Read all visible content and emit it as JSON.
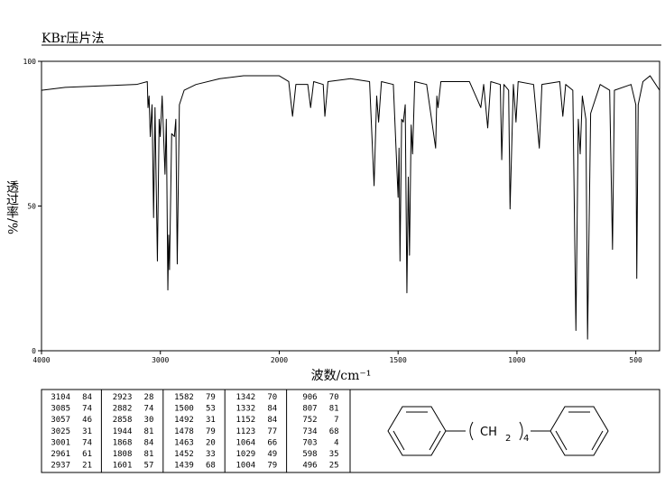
{
  "chart_data": {
    "type": "line",
    "title": "KBr压片法",
    "x_label": "波数/cm⁻¹",
    "y_label": "透过率/%",
    "xlim": [
      4000,
      400
    ],
    "xbreak": 2000,
    "ylim": [
      0,
      100
    ],
    "xticks": [
      4000,
      3000,
      2000,
      1500,
      1000,
      500
    ],
    "yticks": [
      0,
      50,
      100
    ],
    "grid": false,
    "x": [
      4000,
      3800,
      3500,
      3200,
      3110,
      3104,
      3095,
      3085,
      3070,
      3057,
      3045,
      3025,
      3010,
      3001,
      2985,
      2961,
      2950,
      2937,
      2930,
      2923,
      2905,
      2882,
      2870,
      2858,
      2840,
      2800,
      2700,
      2500,
      2300,
      2100,
      2000,
      1960,
      1944,
      1930,
      1880,
      1868,
      1855,
      1815,
      1808,
      1795,
      1700,
      1620,
      1601,
      1590,
      1582,
      1570,
      1520,
      1500,
      1496,
      1492,
      1485,
      1478,
      1470,
      1463,
      1457,
      1452,
      1445,
      1439,
      1430,
      1380,
      1342,
      1337,
      1332,
      1320,
      1200,
      1152,
      1140,
      1123,
      1110,
      1070,
      1064,
      1055,
      1035,
      1029,
      1015,
      1004,
      995,
      930,
      906,
      895,
      820,
      807,
      795,
      765,
      752,
      742,
      734,
      725,
      710,
      703,
      690,
      650,
      610,
      598,
      590,
      520,
      500,
      496,
      490,
      470,
      440,
      400
    ],
    "series": [
      {
        "name": "spectrum",
        "color": "#000000",
        "values": [
          90,
          91,
          91.5,
          92,
          93,
          84,
          88,
          74,
          85,
          46,
          84,
          31,
          80,
          74,
          88,
          61,
          80,
          21,
          40,
          28,
          75,
          74,
          80,
          30,
          85,
          90,
          92,
          94,
          95,
          95,
          95,
          93,
          81,
          92,
          92,
          84,
          93,
          92,
          81,
          93,
          94,
          93,
          57,
          88,
          79,
          93,
          92,
          53,
          70,
          31,
          80,
          79,
          85,
          20,
          60,
          33,
          78,
          68,
          93,
          92,
          70,
          88,
          84,
          93,
          93,
          84,
          92,
          77,
          93,
          92,
          66,
          92,
          90,
          49,
          92,
          79,
          93,
          92,
          70,
          92,
          93,
          81,
          92,
          90,
          7,
          80,
          68,
          88,
          80,
          4,
          82,
          92,
          90,
          35,
          90,
          92,
          85,
          25,
          85,
          93,
          95,
          90
        ]
      }
    ]
  },
  "peak_table": {
    "rows": [
      [
        "3104",
        "84"
      ],
      [
        "3085",
        "74"
      ],
      [
        "3057",
        "46"
      ],
      [
        "3025",
        "31"
      ],
      [
        "3001",
        "74"
      ],
      [
        "2961",
        "61"
      ],
      [
        "2937",
        "21"
      ],
      [
        "2923",
        "28"
      ],
      [
        "2882",
        "74"
      ],
      [
        "2858",
        "30"
      ],
      [
        "1944",
        "81"
      ],
      [
        "1868",
        "84"
      ],
      [
        "1808",
        "81"
      ],
      [
        "1601",
        "57"
      ],
      [
        "1582",
        "79"
      ],
      [
        "1500",
        "53"
      ],
      [
        "1492",
        "31"
      ],
      [
        "1478",
        "79"
      ],
      [
        "1463",
        "20"
      ],
      [
        "1452",
        "33"
      ],
      [
        "1439",
        "68"
      ],
      [
        "1342",
        "70"
      ],
      [
        "1332",
        "84"
      ],
      [
        "1152",
        "84"
      ],
      [
        "1123",
        "77"
      ],
      [
        "1064",
        "66"
      ],
      [
        "1029",
        "49"
      ],
      [
        "1004",
        "79"
      ],
      [
        "906",
        "70"
      ],
      [
        "807",
        "81"
      ],
      [
        "752",
        "7"
      ],
      [
        "734",
        "68"
      ],
      [
        "703",
        "4"
      ],
      [
        "598",
        "35"
      ],
      [
        "496",
        "25"
      ]
    ]
  },
  "structure": {
    "unit": "CH",
    "unit_sub": "2",
    "repeat": "4"
  }
}
